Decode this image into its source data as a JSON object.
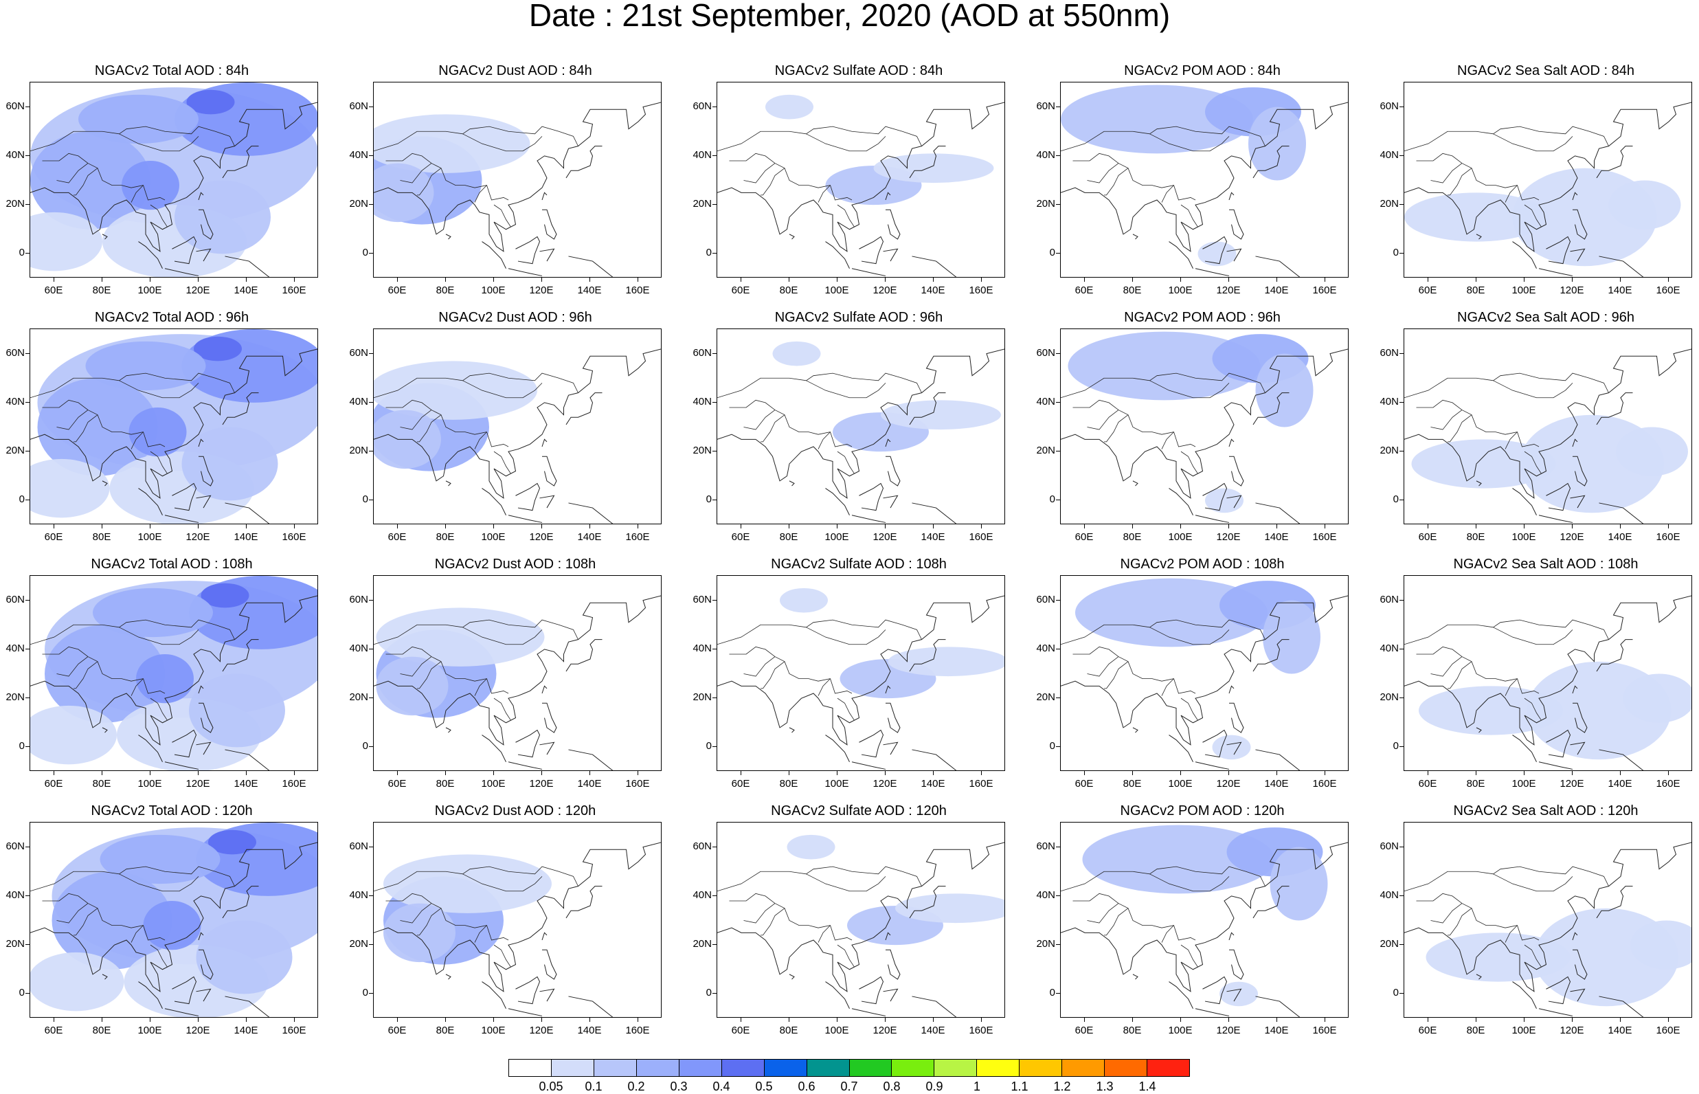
{
  "title": "Date : 21st September, 2020 (AOD at 550nm)",
  "colorbar": {
    "colors": [
      "#ffffff",
      "#d3ddfa",
      "#b7c6fa",
      "#9cb0fb",
      "#8197fb",
      "#5d6ff2",
      "#0a62ea",
      "#02948f",
      "#22c922",
      "#79ee0e",
      "#b8f444",
      "#ffff0f",
      "#ffc700",
      "#ff9a00",
      "#ff6a00",
      "#ff2210"
    ],
    "labels": [
      "0.05",
      "0.1",
      "0.2",
      "0.3",
      "0.4",
      "0.5",
      "0.6",
      "0.7",
      "0.8",
      "0.9",
      "1",
      "1.1",
      "1.2",
      "1.3",
      "1.4"
    ]
  },
  "axes": {
    "lon_labels": [
      "60E",
      "80E",
      "100E",
      "120E",
      "140E",
      "160E"
    ],
    "lat_labels": [
      "60N",
      "40N",
      "20N",
      "0"
    ]
  },
  "panels": [
    {
      "title": "NGACv2 Total AOD : 84h"
    },
    {
      "title": "NGACv2 Dust AOD : 84h"
    },
    {
      "title": "NGACv2 Sulfate AOD : 84h"
    },
    {
      "title": "NGACv2 POM AOD : 84h"
    },
    {
      "title": "NGACv2 Sea Salt AOD : 84h"
    },
    {
      "title": "NGACv2 Total AOD : 96h"
    },
    {
      "title": "NGACv2 Dust AOD : 96h"
    },
    {
      "title": "NGACv2 Sulfate AOD : 96h"
    },
    {
      "title": "NGACv2 POM AOD : 96h"
    },
    {
      "title": "NGACv2 Sea Salt AOD : 96h"
    },
    {
      "title": "NGACv2 Total AOD : 108h"
    },
    {
      "title": "NGACv2 Dust AOD : 108h"
    },
    {
      "title": "NGACv2 Sulfate AOD : 108h"
    },
    {
      "title": "NGACv2 POM AOD : 108h"
    },
    {
      "title": "NGACv2 Sea Salt AOD : 108h"
    },
    {
      "title": "NGACv2 Total AOD : 120h"
    },
    {
      "title": "NGACv2 Dust AOD : 120h"
    },
    {
      "title": "NGACv2 Sulfate AOD : 120h"
    },
    {
      "title": "NGACv2 POM AOD : 120h"
    },
    {
      "title": "NGACv2 Sea Salt  AOD : 120h"
    }
  ]
}
